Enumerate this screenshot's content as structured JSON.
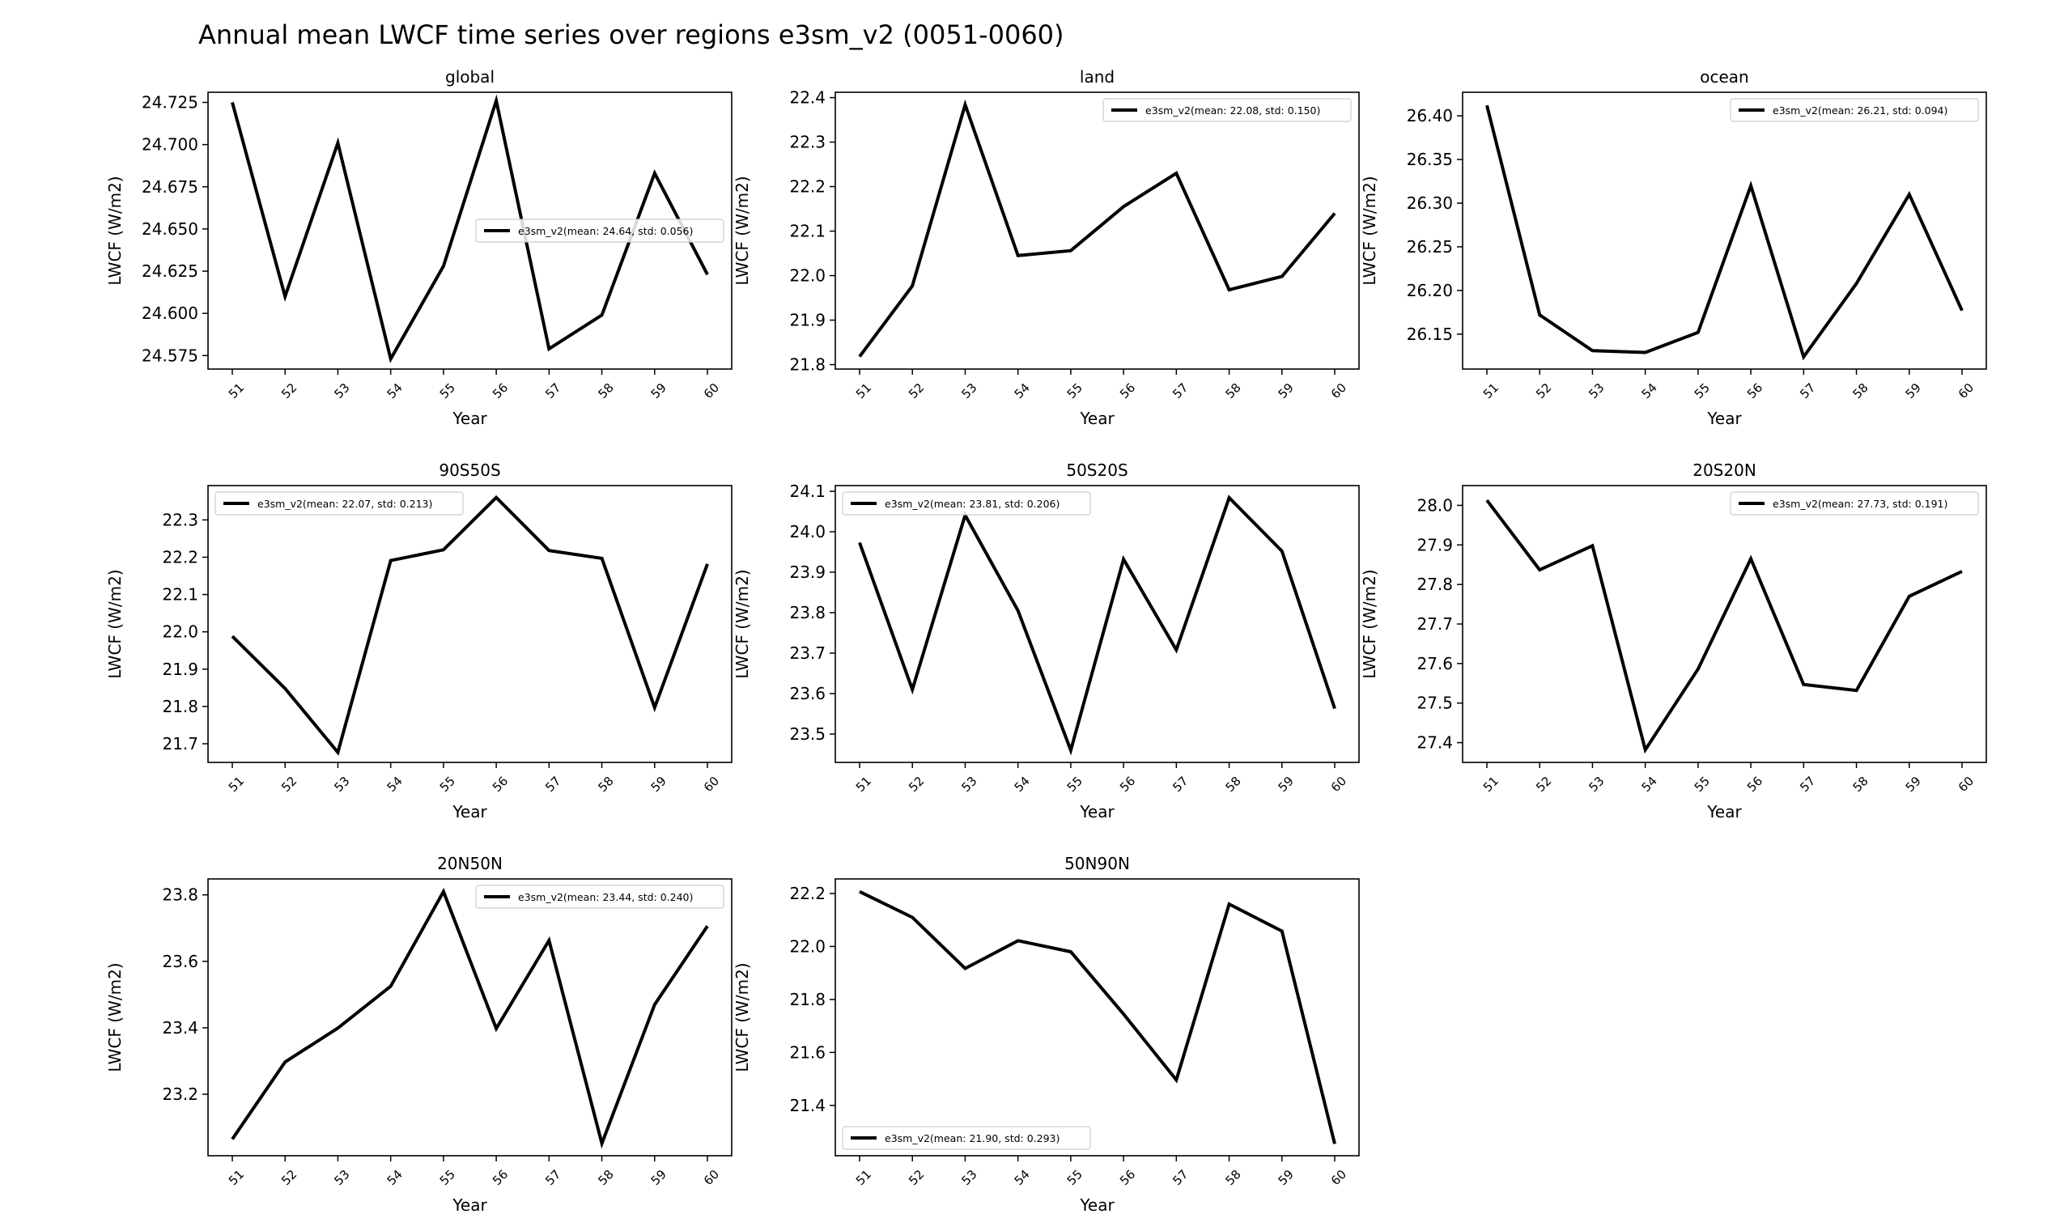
{
  "suptitle": "Annual mean LWCF time series over regions e3sm_v2 (0051-0060)",
  "chart_data": [
    {
      "type": "line",
      "title": "global",
      "xlabel": "Year",
      "ylabel": "LWCF (W/m2)",
      "categories": [
        "51",
        "52",
        "53",
        "54",
        "55",
        "56",
        "57",
        "58",
        "59",
        "60"
      ],
      "series": [
        {
          "name": "e3sm_v2(mean: 24.64, std: 0.056)",
          "color": "#000000",
          "values": [
            24.725,
            24.61,
            24.701,
            24.573,
            24.628,
            24.726,
            24.579,
            24.599,
            24.683,
            24.623
          ]
        }
      ],
      "ylim": [
        24.567,
        24.731
      ],
      "yticks": [
        "24.575",
        "24.600",
        "24.625",
        "24.650",
        "24.675",
        "24.700",
        "24.725"
      ],
      "legend": "center-right"
    },
    {
      "type": "line",
      "title": "land",
      "xlabel": "Year",
      "ylabel": "LWCF (W/m2)",
      "categories": [
        "51",
        "52",
        "53",
        "54",
        "55",
        "56",
        "57",
        "58",
        "59",
        "60"
      ],
      "series": [
        {
          "name": "e3sm_v2(mean: 22.08, std: 0.150)",
          "color": "#000000",
          "values": [
            21.818,
            21.977,
            22.384,
            22.045,
            22.056,
            22.155,
            22.23,
            21.968,
            21.998,
            22.14
          ]
        }
      ],
      "ylim": [
        21.79,
        22.412
      ],
      "yticks": [
        "21.8",
        "21.9",
        "22.0",
        "22.1",
        "22.2",
        "22.3",
        "22.4"
      ],
      "legend": "top-right"
    },
    {
      "type": "line",
      "title": "ocean",
      "xlabel": "Year",
      "ylabel": "LWCF (W/m2)",
      "categories": [
        "51",
        "52",
        "53",
        "54",
        "55",
        "56",
        "57",
        "58",
        "59",
        "60"
      ],
      "series": [
        {
          "name": "e3sm_v2(mean: 26.21, std: 0.094)",
          "color": "#000000",
          "values": [
            26.412,
            26.172,
            26.131,
            26.129,
            26.152,
            26.32,
            26.124,
            26.208,
            26.31,
            26.177
          ]
        }
      ],
      "ylim": [
        26.11,
        26.427
      ],
      "yticks": [
        "26.15",
        "26.20",
        "26.25",
        "26.30",
        "26.35",
        "26.40"
      ],
      "legend": "top-right"
    },
    {
      "type": "line",
      "title": "90S50S",
      "xlabel": "Year",
      "ylabel": "LWCF (W/m2)",
      "categories": [
        "51",
        "52",
        "53",
        "54",
        "55",
        "56",
        "57",
        "58",
        "59",
        "60"
      ],
      "series": [
        {
          "name": "e3sm_v2(mean: 22.07, std: 0.213)",
          "color": "#000000",
          "values": [
            21.988,
            21.848,
            21.677,
            22.191,
            22.22,
            22.36,
            22.218,
            22.197,
            21.797,
            22.182
          ]
        }
      ],
      "ylim": [
        21.65,
        22.392
      ],
      "yticks": [
        "21.7",
        "21.8",
        "21.9",
        "22.0",
        "22.1",
        "22.2",
        "22.3"
      ],
      "legend": "top-left"
    },
    {
      "type": "line",
      "title": "50S20S",
      "xlabel": "Year",
      "ylabel": "LWCF (W/m2)",
      "categories": [
        "51",
        "52",
        "53",
        "54",
        "55",
        "56",
        "57",
        "58",
        "59",
        "60"
      ],
      "series": [
        {
          "name": "e3sm_v2(mean: 23.81, std: 0.206)",
          "color": "#000000",
          "values": [
            23.973,
            23.61,
            24.041,
            23.805,
            23.46,
            23.932,
            23.708,
            24.084,
            23.952,
            23.563
          ]
        }
      ],
      "ylim": [
        23.43,
        24.114
      ],
      "yticks": [
        "23.5",
        "23.6",
        "23.7",
        "23.8",
        "23.9",
        "24.0",
        "24.1"
      ],
      "legend": "top-left"
    },
    {
      "type": "line",
      "title": "20S20N",
      "xlabel": "Year",
      "ylabel": "LWCF (W/m2)",
      "categories": [
        "51",
        "52",
        "53",
        "54",
        "55",
        "56",
        "57",
        "58",
        "59",
        "60"
      ],
      "series": [
        {
          "name": "e3sm_v2(mean: 27.73, std: 0.191)",
          "color": "#000000",
          "values": [
            28.013,
            27.837,
            27.898,
            27.382,
            27.586,
            27.865,
            27.547,
            27.532,
            27.77,
            27.833
          ]
        }
      ],
      "ylim": [
        27.35,
        28.05
      ],
      "yticks": [
        "27.4",
        "27.5",
        "27.6",
        "27.7",
        "27.8",
        "27.9",
        "28.0"
      ],
      "legend": "top-right"
    },
    {
      "type": "line",
      "title": "20N50N",
      "xlabel": "Year",
      "ylabel": "LWCF (W/m2)",
      "categories": [
        "51",
        "52",
        "53",
        "54",
        "55",
        "56",
        "57",
        "58",
        "59",
        "60"
      ],
      "series": [
        {
          "name": "e3sm_v2(mean: 23.44, std: 0.240)",
          "color": "#000000",
          "values": [
            23.065,
            23.297,
            23.399,
            23.525,
            23.81,
            23.398,
            23.663,
            23.052,
            23.47,
            23.706
          ]
        }
      ],
      "ylim": [
        23.015,
        23.848
      ],
      "yticks": [
        "23.2",
        "23.4",
        "23.6",
        "23.8"
      ],
      "legend": "top-right"
    },
    {
      "type": "line",
      "title": "50N90N",
      "xlabel": "Year",
      "ylabel": "LWCF (W/m2)",
      "categories": [
        "51",
        "52",
        "53",
        "54",
        "55",
        "56",
        "57",
        "58",
        "59",
        "60"
      ],
      "series": [
        {
          "name": "e3sm_v2(mean: 21.90, std: 0.293)",
          "color": "#000000",
          "values": [
            22.207,
            22.11,
            21.917,
            22.022,
            21.98,
            21.745,
            21.496,
            22.16,
            22.058,
            21.255
          ]
        }
      ],
      "ylim": [
        21.21,
        22.255
      ],
      "yticks": [
        "21.4",
        "21.6",
        "21.8",
        "22.0",
        "22.2"
      ],
      "legend": "bottom-left"
    }
  ]
}
